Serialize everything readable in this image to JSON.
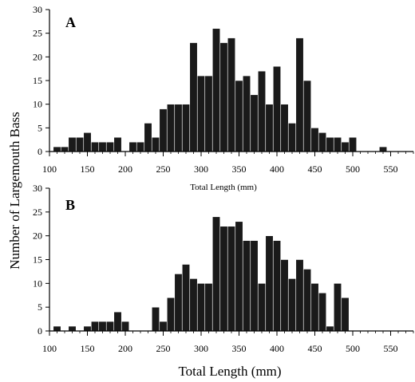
{
  "chart_data": [
    {
      "type": "bar",
      "panel_label": "A",
      "xlabel": "Total Length (mm)",
      "xlim": [
        100,
        580
      ],
      "ylim": [
        0,
        30
      ],
      "x_ticks": [
        100,
        150,
        200,
        250,
        300,
        350,
        400,
        450,
        500,
        550
      ],
      "y_ticks": [
        0,
        5,
        10,
        15,
        20,
        25,
        30
      ],
      "bin_width": 10,
      "bins": [
        {
          "x": 110,
          "y": 1
        },
        {
          "x": 120,
          "y": 1
        },
        {
          "x": 130,
          "y": 3
        },
        {
          "x": 140,
          "y": 3
        },
        {
          "x": 150,
          "y": 4
        },
        {
          "x": 160,
          "y": 2
        },
        {
          "x": 170,
          "y": 2
        },
        {
          "x": 180,
          "y": 2
        },
        {
          "x": 190,
          "y": 3
        },
        {
          "x": 210,
          "y": 2
        },
        {
          "x": 220,
          "y": 2
        },
        {
          "x": 230,
          "y": 6
        },
        {
          "x": 240,
          "y": 3
        },
        {
          "x": 250,
          "y": 9
        },
        {
          "x": 260,
          "y": 10
        },
        {
          "x": 270,
          "y": 10
        },
        {
          "x": 280,
          "y": 10
        },
        {
          "x": 290,
          "y": 23
        },
        {
          "x": 300,
          "y": 16
        },
        {
          "x": 310,
          "y": 16
        },
        {
          "x": 320,
          "y": 26
        },
        {
          "x": 330,
          "y": 23
        },
        {
          "x": 340,
          "y": 24
        },
        {
          "x": 350,
          "y": 15
        },
        {
          "x": 360,
          "y": 16
        },
        {
          "x": 370,
          "y": 12
        },
        {
          "x": 380,
          "y": 17
        },
        {
          "x": 390,
          "y": 10
        },
        {
          "x": 400,
          "y": 18
        },
        {
          "x": 410,
          "y": 10
        },
        {
          "x": 420,
          "y": 6
        },
        {
          "x": 430,
          "y": 24
        },
        {
          "x": 440,
          "y": 15
        },
        {
          "x": 450,
          "y": 5
        },
        {
          "x": 460,
          "y": 4
        },
        {
          "x": 470,
          "y": 3
        },
        {
          "x": 480,
          "y": 3
        },
        {
          "x": 490,
          "y": 2
        },
        {
          "x": 500,
          "y": 3
        },
        {
          "x": 540,
          "y": 1
        }
      ]
    },
    {
      "type": "bar",
      "panel_label": "B",
      "xlabel": "Total Length (mm)",
      "xlim": [
        100,
        580
      ],
      "ylim": [
        0,
        30
      ],
      "x_ticks": [
        100,
        150,
        200,
        250,
        300,
        350,
        400,
        450,
        500,
        550
      ],
      "y_ticks": [
        0,
        5,
        10,
        15,
        20,
        25,
        30
      ],
      "bin_width": 10,
      "bins": [
        {
          "x": 110,
          "y": 1
        },
        {
          "x": 130,
          "y": 1
        },
        {
          "x": 150,
          "y": 1
        },
        {
          "x": 160,
          "y": 2
        },
        {
          "x": 170,
          "y": 2
        },
        {
          "x": 180,
          "y": 2
        },
        {
          "x": 190,
          "y": 4
        },
        {
          "x": 200,
          "y": 2
        },
        {
          "x": 240,
          "y": 5
        },
        {
          "x": 250,
          "y": 2
        },
        {
          "x": 260,
          "y": 7
        },
        {
          "x": 270,
          "y": 12
        },
        {
          "x": 280,
          "y": 14
        },
        {
          "x": 290,
          "y": 11
        },
        {
          "x": 300,
          "y": 10
        },
        {
          "x": 310,
          "y": 10
        },
        {
          "x": 320,
          "y": 24
        },
        {
          "x": 330,
          "y": 22
        },
        {
          "x": 340,
          "y": 22
        },
        {
          "x": 350,
          "y": 23
        },
        {
          "x": 360,
          "y": 19
        },
        {
          "x": 370,
          "y": 19
        },
        {
          "x": 380,
          "y": 10
        },
        {
          "x": 390,
          "y": 20
        },
        {
          "x": 400,
          "y": 19
        },
        {
          "x": 410,
          "y": 15
        },
        {
          "x": 420,
          "y": 11
        },
        {
          "x": 430,
          "y": 15
        },
        {
          "x": 440,
          "y": 13
        },
        {
          "x": 450,
          "y": 10
        },
        {
          "x": 460,
          "y": 8
        },
        {
          "x": 470,
          "y": 1
        },
        {
          "x": 480,
          "y": 10
        },
        {
          "x": 490,
          "y": 7
        }
      ]
    }
  ],
  "shared_ylabel": "Number of Largemouth Bass"
}
